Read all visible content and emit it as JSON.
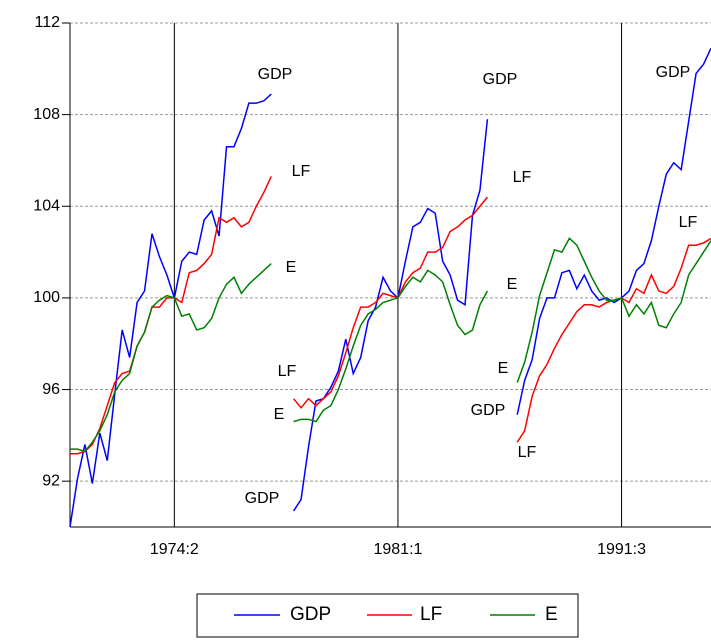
{
  "chart_data": {
    "type": "line",
    "categories": [
      null,
      null,
      null,
      null,
      null,
      null,
      null,
      null,
      null,
      null,
      null,
      null,
      null,
      null,
      "1974:2",
      null,
      null,
      null,
      null,
      null,
      null,
      null,
      null,
      null,
      null,
      null,
      null,
      null,
      null,
      null,
      null,
      null,
      null,
      null,
      null,
      null,
      null,
      null,
      null,
      null,
      null,
      null,
      null,
      null,
      "1981:1",
      null,
      null,
      null,
      null,
      null,
      null,
      null,
      null,
      null,
      null,
      null,
      null,
      null,
      null,
      null,
      null,
      null,
      null,
      null,
      null,
      null,
      null,
      null,
      null,
      null,
      null,
      null,
      null,
      null,
      "1991:3",
      null,
      null,
      null,
      null,
      null,
      null,
      null,
      null,
      null,
      null,
      null,
      null
    ],
    "series": [
      {
        "name": "GDP",
        "color": "#0000ff",
        "values": [
          90.0,
          92.1,
          93.6,
          91.9,
          94.1,
          92.9,
          95.8,
          98.6,
          97.4,
          99.8,
          100.3,
          102.8,
          101.8,
          101.0,
          100.0,
          101.6,
          102.0,
          101.9,
          103.4,
          103.8,
          102.7,
          106.6,
          106.6,
          107.4,
          108.5,
          108.5,
          108.6,
          108.9,
          null,
          null,
          90.7,
          91.2,
          93.5,
          95.5,
          95.6,
          96.1,
          96.8,
          98.2,
          96.7,
          97.4,
          99.0,
          99.6,
          100.9,
          100.3,
          100.0,
          101.6,
          103.1,
          103.3,
          103.9,
          103.7,
          101.6,
          101.0,
          99.9,
          99.7,
          103.6,
          104.7,
          107.8,
          null,
          null,
          null,
          94.9,
          96.4,
          97.3,
          99.1,
          100.0,
          100.0,
          101.1,
          101.2,
          100.4,
          101.0,
          100.3,
          99.9,
          100.0,
          99.8,
          100.0,
          100.3,
          101.2,
          101.5,
          102.5,
          104.0,
          105.4,
          105.9,
          105.6,
          107.7,
          109.8,
          110.2,
          110.9
        ]
      },
      {
        "name": "LF",
        "color": "#ff0000",
        "values": [
          93.2,
          93.2,
          93.3,
          93.6,
          94.3,
          95.3,
          96.3,
          96.7,
          96.8,
          97.9,
          98.5,
          99.6,
          99.6,
          100.0,
          100.0,
          99.8,
          101.1,
          101.2,
          101.5,
          101.9,
          103.5,
          103.3,
          103.5,
          103.1,
          103.3,
          104.0,
          104.6,
          105.3,
          null,
          null,
          95.6,
          95.2,
          95.6,
          95.3,
          95.6,
          95.9,
          96.6,
          97.6,
          98.7,
          99.6,
          99.6,
          99.8,
          100.2,
          100.1,
          100.0,
          100.7,
          101.1,
          101.3,
          102.0,
          102.0,
          102.2,
          102.9,
          103.1,
          103.4,
          103.6,
          104.0,
          104.4,
          null,
          null,
          null,
          93.7,
          94.2,
          95.7,
          96.6,
          97.1,
          97.8,
          98.4,
          98.9,
          99.4,
          99.7,
          99.7,
          99.6,
          99.8,
          99.9,
          100.0,
          99.8,
          100.4,
          100.2,
          101.0,
          100.3,
          100.2,
          100.5,
          101.3,
          102.3,
          102.3,
          102.4,
          102.6
        ]
      },
      {
        "name": "E",
        "color": "#008000",
        "values": [
          93.4,
          93.4,
          93.3,
          93.7,
          94.2,
          94.9,
          95.9,
          96.4,
          96.7,
          97.9,
          98.5,
          99.6,
          99.9,
          100.1,
          100.0,
          99.2,
          99.3,
          98.6,
          98.7,
          99.1,
          100.0,
          100.6,
          100.9,
          100.2,
          100.6,
          100.9,
          101.2,
          101.5,
          null,
          null,
          94.6,
          94.7,
          94.7,
          94.6,
          95.1,
          95.3,
          96.0,
          96.9,
          97.9,
          98.8,
          99.3,
          99.5,
          99.8,
          99.9,
          100.0,
          100.5,
          100.9,
          100.7,
          101.2,
          101.0,
          100.7,
          99.7,
          98.8,
          98.4,
          98.6,
          99.7,
          100.3,
          null,
          null,
          null,
          96.3,
          97.2,
          98.5,
          100.1,
          101.1,
          102.1,
          102.0,
          102.6,
          102.3,
          101.6,
          100.9,
          100.3,
          99.9,
          99.9,
          100.0,
          99.2,
          99.7,
          99.3,
          99.8,
          98.8,
          98.7,
          99.3,
          99.8,
          101.0,
          101.5,
          102.0,
          102.5
        ]
      }
    ],
    "annotations": [
      "GDP",
      "LF",
      "E",
      "LF",
      "E",
      "GDP",
      "GDP",
      "LF",
      "E",
      "E",
      "GDP",
      "LF",
      "GDP",
      "LF"
    ],
    "ylim": [
      90,
      112
    ],
    "yticks": [
      92,
      96,
      100,
      104,
      108,
      112
    ],
    "grid": true
  }
}
